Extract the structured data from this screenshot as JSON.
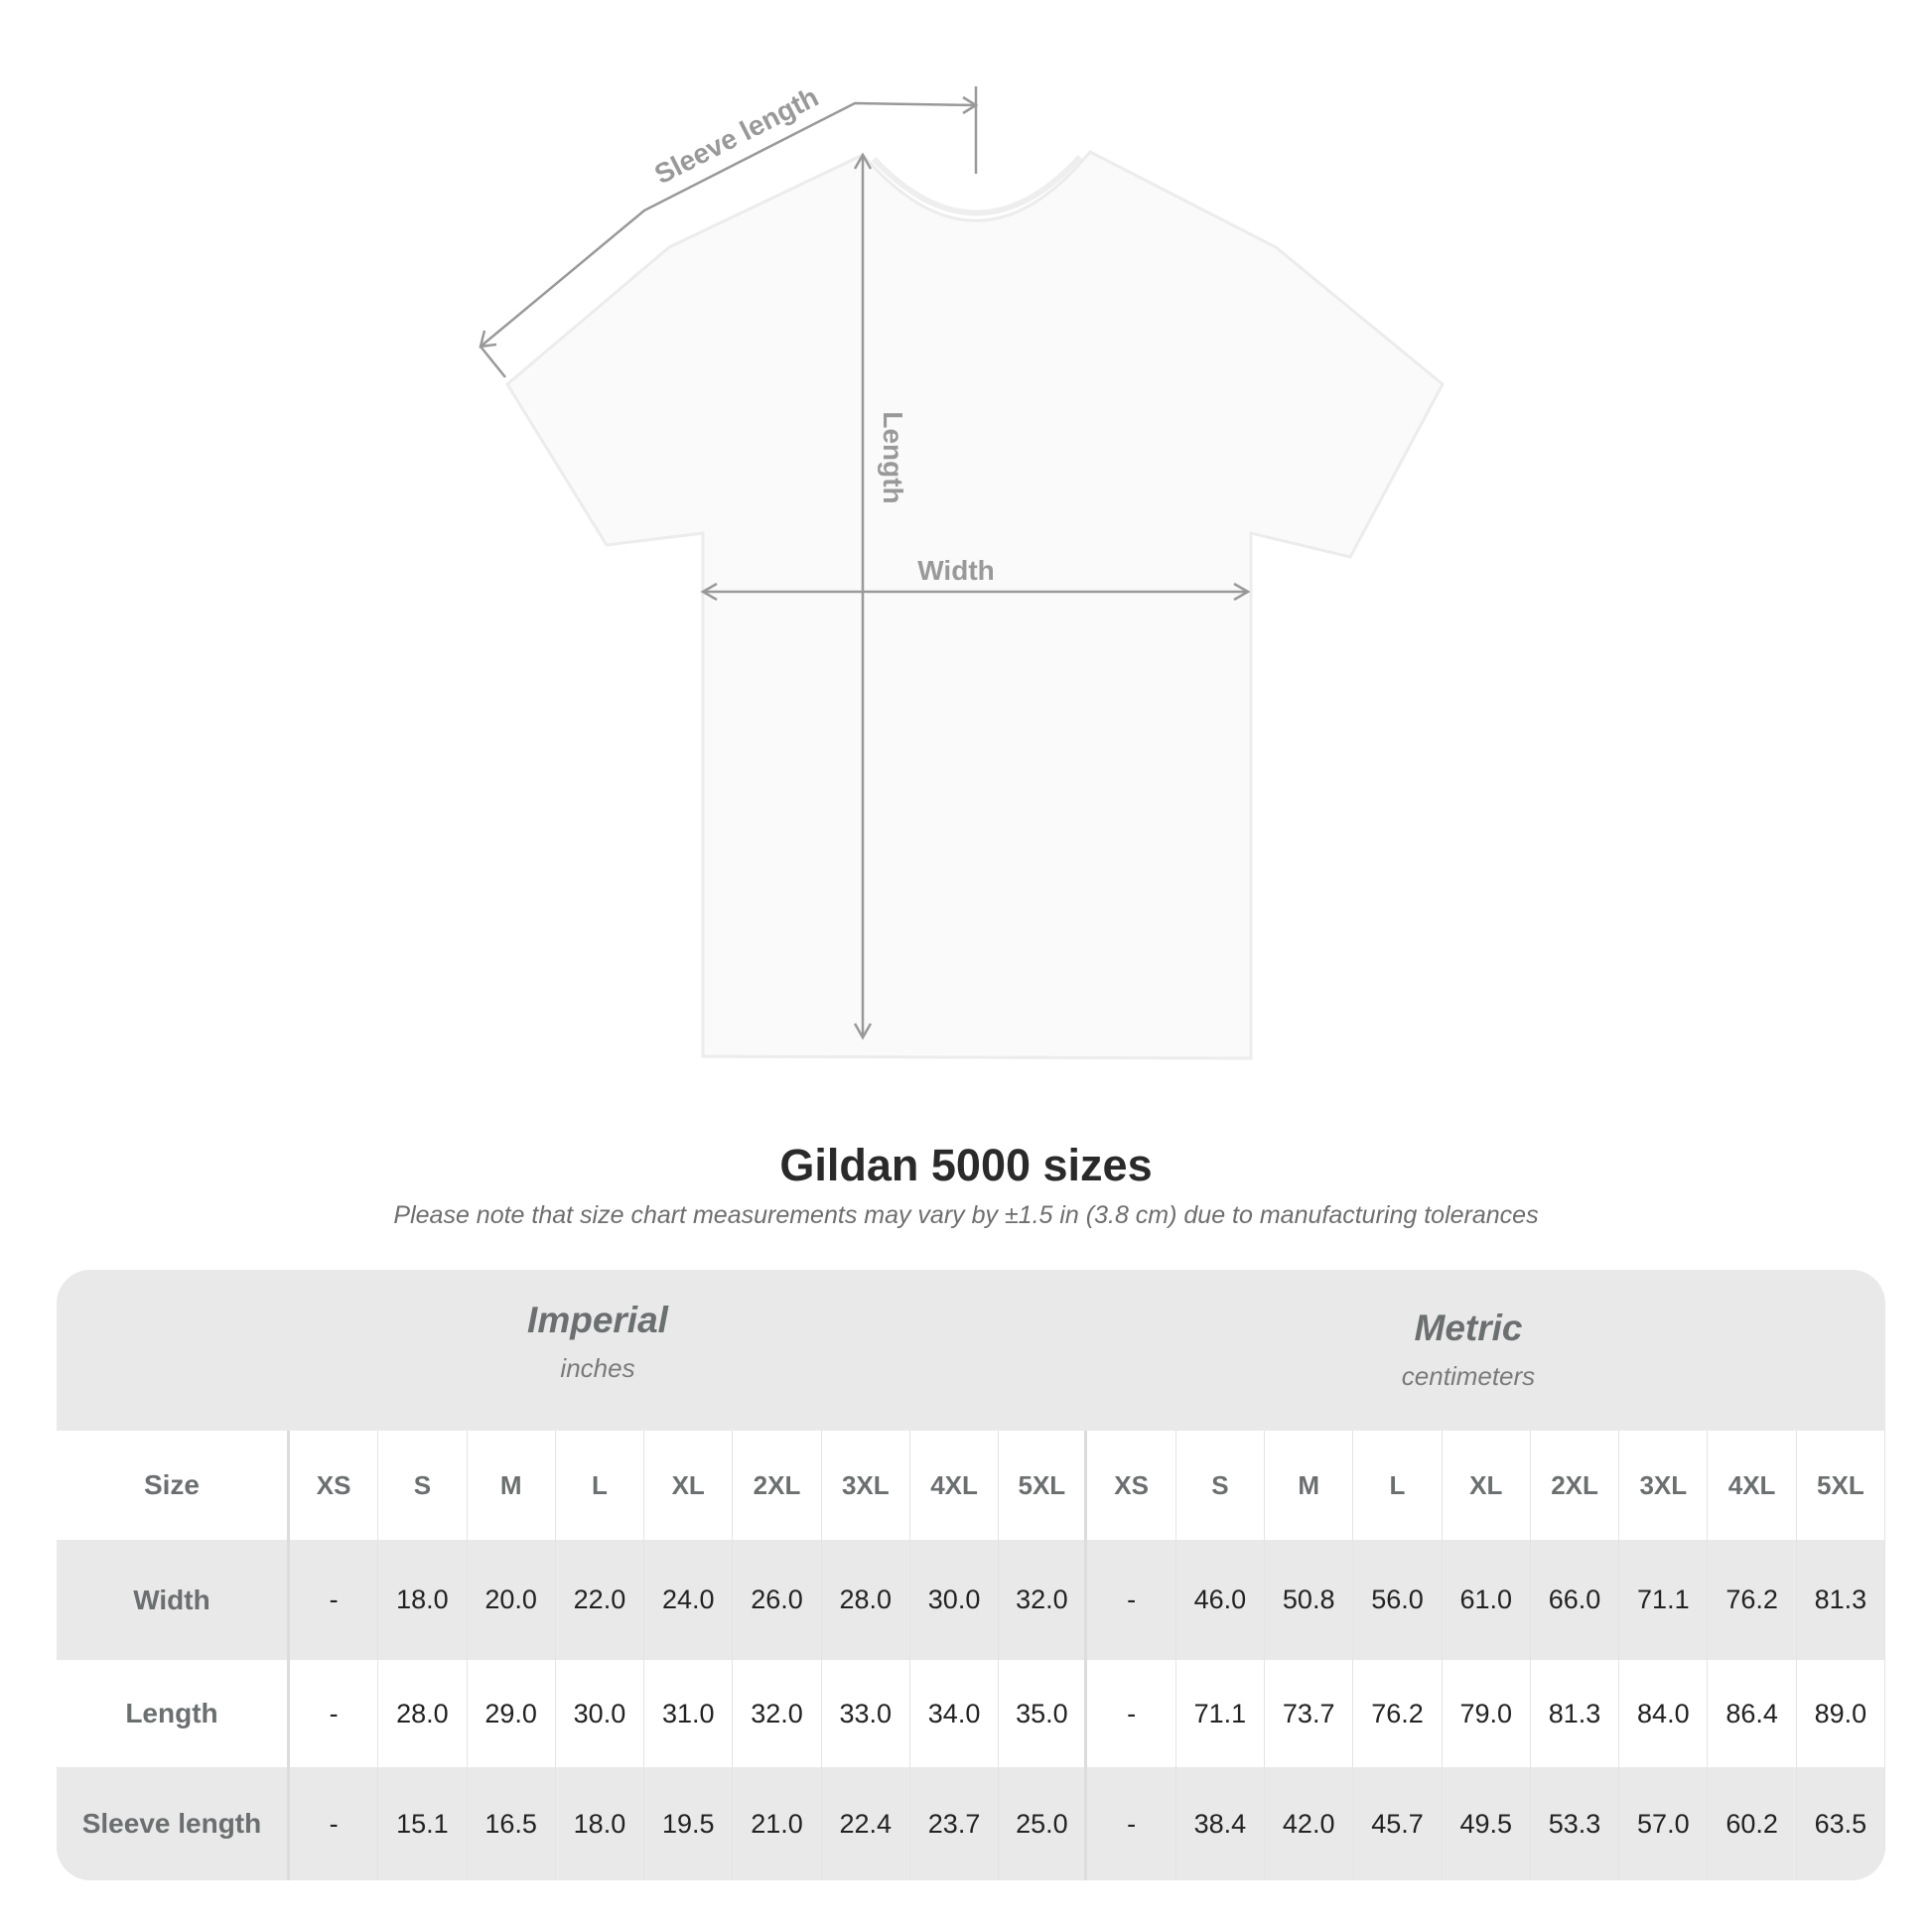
{
  "diagram": {
    "labels": {
      "sleeve": "Sleeve length",
      "length": "Length",
      "width": "Width"
    },
    "line_color": "#999999"
  },
  "title": "Gildan 5000 sizes",
  "note": "Please note that size chart measurements may vary by ±1.5 in (3.8 cm) due to manufacturing tolerances",
  "table": {
    "imperial": {
      "name": "Imperial",
      "unit": "inches"
    },
    "metric": {
      "name": "Metric",
      "unit": "centimeters"
    },
    "size_label": "Size",
    "sizes": [
      "XS",
      "S",
      "M",
      "L",
      "XL",
      "2XL",
      "3XL",
      "4XL",
      "5XL",
      "XS",
      "S",
      "M",
      "L",
      "XL",
      "2XL",
      "3XL",
      "4XL",
      "5XL"
    ],
    "rows": [
      {
        "label": "Width",
        "values": [
          "-",
          "18.0",
          "20.0",
          "22.0",
          "24.0",
          "26.0",
          "28.0",
          "30.0",
          "32.0",
          "-",
          "46.0",
          "50.8",
          "56.0",
          "61.0",
          "66.0",
          "71.1",
          "76.2",
          "81.3"
        ]
      },
      {
        "label": "Length",
        "values": [
          "-",
          "28.0",
          "29.0",
          "30.0",
          "31.0",
          "32.0",
          "33.0",
          "34.0",
          "35.0",
          "-",
          "71.1",
          "73.7",
          "76.2",
          "79.0",
          "81.3",
          "84.0",
          "86.4",
          "89.0"
        ]
      },
      {
        "label": "Sleeve length",
        "values": [
          "-",
          "15.1",
          "16.5",
          "18.0",
          "19.5",
          "21.0",
          "22.4",
          "23.7",
          "25.0",
          "-",
          "38.4",
          "42.0",
          "45.7",
          "49.5",
          "53.3",
          "57.0",
          "60.2",
          "63.5"
        ]
      }
    ],
    "header_bg": "#e9e9e9"
  }
}
